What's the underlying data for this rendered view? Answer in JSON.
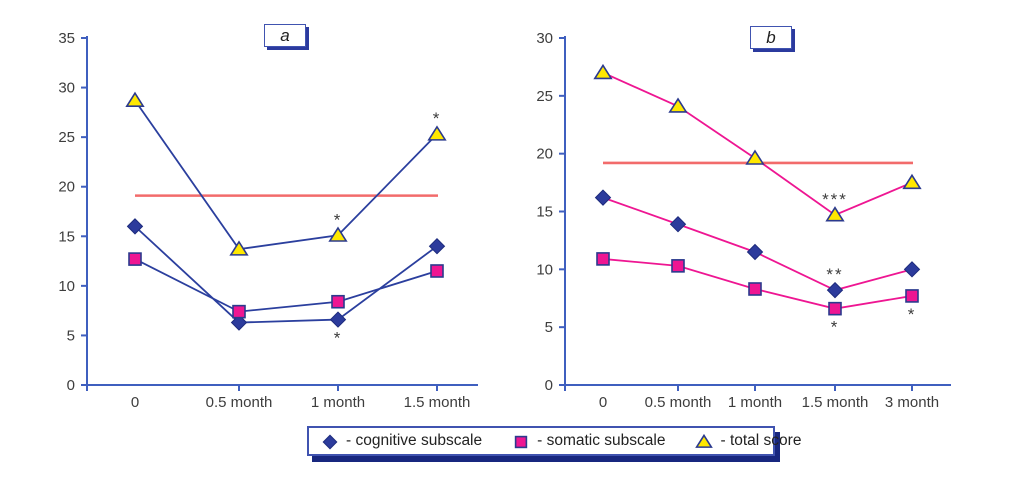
{
  "chart_data": [
    {
      "type": "line",
      "panel_label": "a",
      "categories": [
        "0",
        "0.5 month",
        "1 month",
        "1.5 month"
      ],
      "series": [
        {
          "name": "cognitive subscale",
          "marker": "diamond",
          "values": [
            16,
            6.3,
            6.6,
            14
          ]
        },
        {
          "name": "somatic subscale",
          "marker": "square",
          "values": [
            12.7,
            7.4,
            8.4,
            11.5
          ]
        },
        {
          "name": "total score",
          "marker": "triangle",
          "values": [
            28.7,
            13.7,
            15.1,
            25.3
          ]
        }
      ],
      "ylim": [
        0,
        35
      ],
      "ytick_step": 5,
      "grid": false,
      "line_color": "#2b3f9e",
      "reference_line_y": 19.1,
      "annotations": [
        {
          "series_index": 2,
          "point_index": 2,
          "text": "*",
          "position": "above"
        },
        {
          "series_index": 2,
          "point_index": 3,
          "text": "*",
          "position": "above"
        },
        {
          "series_index": 0,
          "point_index": 2,
          "text": "*",
          "position": "below"
        }
      ]
    },
    {
      "type": "line",
      "panel_label": "b",
      "categories": [
        "0",
        "0.5 month",
        "1 month",
        "1.5 month",
        "3 month"
      ],
      "series": [
        {
          "name": "cognitive subscale",
          "marker": "diamond",
          "values": [
            16.2,
            13.9,
            11.5,
            8.2,
            10
          ]
        },
        {
          "name": "somatic subscale",
          "marker": "square",
          "values": [
            10.9,
            10.3,
            8.3,
            6.6,
            7.7
          ]
        },
        {
          "name": "total score",
          "marker": "triangle",
          "values": [
            27,
            24.1,
            19.6,
            14.7,
            17.5
          ]
        }
      ],
      "ylim": [
        0,
        30
      ],
      "ytick_step": 5,
      "grid": false,
      "line_color": "#ee1692",
      "reference_line_y": 19.2,
      "annotations": [
        {
          "series_index": 2,
          "point_index": 3,
          "text": "***",
          "position": "above"
        },
        {
          "series_index": 0,
          "point_index": 3,
          "text": "**",
          "position": "above"
        },
        {
          "series_index": 1,
          "point_index": 3,
          "text": "*",
          "position": "below"
        },
        {
          "series_index": 1,
          "point_index": 4,
          "text": "*",
          "position": "below"
        }
      ]
    }
  ],
  "legend": {
    "items": [
      {
        "marker": "diamond",
        "label": "- cognitive subscale"
      },
      {
        "marker": "square",
        "label": "- somatic subscale"
      },
      {
        "marker": "triangle",
        "label": "- total score"
      }
    ]
  },
  "colors": {
    "axis": "#3f5fbf",
    "reference_line": "#f26b6b",
    "marker_diamond": "#2c3b9c",
    "marker_diamond_border": "#1d2b7d",
    "marker_square": "#ee1692",
    "marker_triangle": "#ffe800",
    "marker_border": "#2b3a8e",
    "text": "#3d3d3d"
  }
}
